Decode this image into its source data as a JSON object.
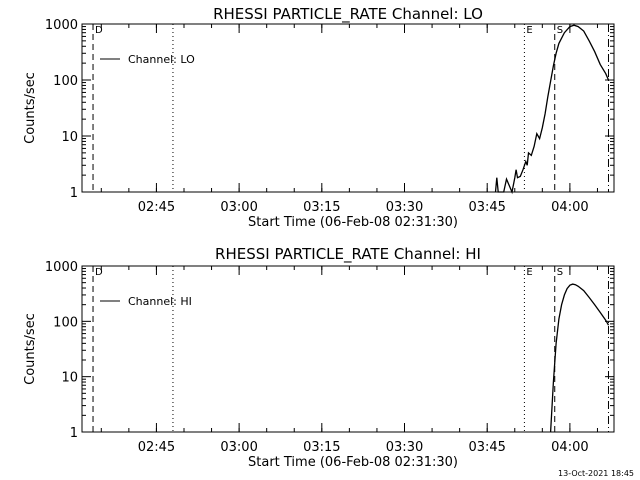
{
  "footer_stamp": "13-Oct-2021 18:45",
  "chart_data": [
    {
      "type": "line",
      "title": "RHESSI PARTICLE_RATE Channel: LO",
      "xlabel": "Start Time (06-Feb-08 02:31:30)",
      "ylabel": "Counts/sec",
      "yscale": "log",
      "ylim": [
        1,
        1000
      ],
      "xlim": [
        "02:31:30",
        "04:08:00"
      ],
      "x_ticks": [
        "02:45",
        "03:00",
        "03:15",
        "03:30",
        "03:45",
        "04:00"
      ],
      "y_ticks": [
        "1",
        "10",
        "100",
        "1000"
      ],
      "legend": {
        "position": "top-left",
        "entries": [
          "Channel: LO"
        ]
      },
      "series": [
        {
          "name": "Channel: LO",
          "x": [
            "03:46:30",
            "03:46:45",
            "03:47:00",
            "03:47:15",
            "03:48:00",
            "03:48:30",
            "03:49:30",
            "03:50:00",
            "03:50:15",
            "03:50:30",
            "03:51:00",
            "03:51:30",
            "03:52:00",
            "03:52:15",
            "03:52:30",
            "03:53:00",
            "03:53:30",
            "03:54:00",
            "03:54:30",
            "03:55:00",
            "03:55:30",
            "03:56:00",
            "03:56:30",
            "03:57:00",
            "03:57:30",
            "03:58:00",
            "03:59:00",
            "04:00:00",
            "04:00:45",
            "04:01:30",
            "04:02:30",
            "04:03:30",
            "04:04:30",
            "04:05:30",
            "04:06:30",
            "04:07:00"
          ],
          "y": [
            1,
            1.8,
            1,
            1,
            1,
            1.7,
            1,
            1.8,
            2.5,
            1.8,
            1.9,
            2.5,
            3.5,
            3,
            5,
            4.5,
            6.5,
            11,
            9,
            14,
            25,
            50,
            95,
            180,
            300,
            450,
            700,
            900,
            950,
            900,
            750,
            500,
            320,
            190,
            130,
            100
          ]
        }
      ],
      "markers": [
        {
          "x": "02:33:30",
          "style": "dashed",
          "label": "D"
        },
        {
          "x": "02:48:00",
          "style": "dotted",
          "label": ""
        },
        {
          "x": "03:51:45",
          "style": "dotted",
          "label": "E"
        },
        {
          "x": "03:57:15",
          "style": "dashed",
          "label": "S"
        },
        {
          "x": "04:07:00",
          "style": "dashdot",
          "label": ""
        }
      ]
    },
    {
      "type": "line",
      "title": "RHESSI PARTICLE_RATE Channel: HI",
      "xlabel": "Start Time (06-Feb-08 02:31:30)",
      "ylabel": "Counts/sec",
      "yscale": "log",
      "ylim": [
        1,
        1000
      ],
      "xlim": [
        "02:31:30",
        "04:08:00"
      ],
      "x_ticks": [
        "02:45",
        "03:00",
        "03:15",
        "03:30",
        "03:45",
        "04:00"
      ],
      "y_ticks": [
        "1",
        "10",
        "100",
        "1000"
      ],
      "legend": {
        "position": "top-left",
        "entries": [
          "Channel: HI"
        ]
      },
      "series": [
        {
          "name": "Channel: HI",
          "x": [
            "03:56:30",
            "03:57:00",
            "03:57:30",
            "03:58:00",
            "03:58:30",
            "03:59:00",
            "03:59:30",
            "04:00:00",
            "04:00:30",
            "04:01:00",
            "04:01:30",
            "04:02:30",
            "04:03:30",
            "04:04:30",
            "04:05:30",
            "04:06:30",
            "04:07:00"
          ],
          "y": [
            1,
            8,
            40,
            110,
            200,
            300,
            390,
            450,
            470,
            460,
            430,
            360,
            270,
            200,
            145,
            105,
            85
          ]
        }
      ],
      "markers": [
        {
          "x": "02:33:30",
          "style": "dashed",
          "label": "D"
        },
        {
          "x": "02:48:00",
          "style": "dotted",
          "label": ""
        },
        {
          "x": "03:51:45",
          "style": "dotted",
          "label": "E"
        },
        {
          "x": "03:57:15",
          "style": "dashed",
          "label": "S"
        },
        {
          "x": "04:07:00",
          "style": "dashdot",
          "label": ""
        }
      ]
    }
  ]
}
